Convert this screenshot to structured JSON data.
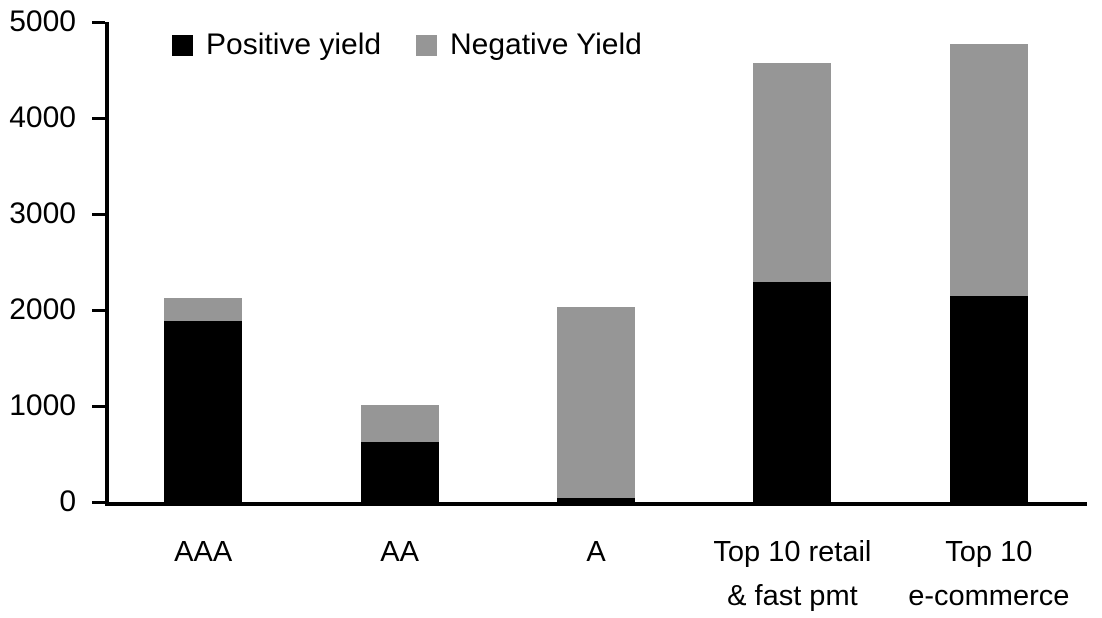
{
  "legend": {
    "items": [
      {
        "label": "Positive yield",
        "color": "#000000"
      },
      {
        "label": "Negative Yield",
        "color": "#969696"
      }
    ]
  },
  "chart_data": {
    "type": "bar",
    "stacked": true,
    "title": "",
    "xlabel": "",
    "ylabel": "",
    "categories": [
      "AAA",
      "AA",
      "A",
      "Top 10 retail\n& fast pmt",
      "Top 10\ne-commerce"
    ],
    "series": [
      {
        "name": "Positive yield",
        "color": "#000000",
        "values": [
          1890,
          620,
          40,
          2290,
          2150
        ]
      },
      {
        "name": "Negative Yield",
        "color": "#969696",
        "values": [
          230,
          390,
          1990,
          2280,
          2620
        ]
      }
    ],
    "totals": [
      2120,
      1010,
      2030,
      4570,
      4770
    ],
    "ylim": [
      0,
      5000
    ],
    "yticks": [
      0,
      1000,
      2000,
      3000,
      4000,
      5000
    ],
    "grid": false,
    "legend_position": "top"
  }
}
